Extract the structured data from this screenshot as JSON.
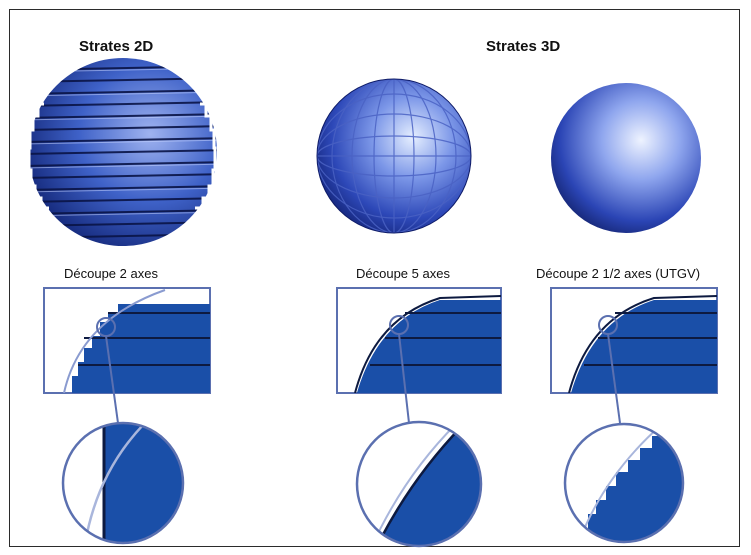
{
  "titles": {
    "strata_2d": "Strates 2D",
    "strata_3d": "Strates 3D"
  },
  "captions": {
    "two_axis": "Découpe 2 axes",
    "five_axis": "Découpe 5 axes",
    "two_half_axis": "Découpe 2 1/2 axes (UTGV)"
  },
  "colors": {
    "part_blue": "#1a4fa8",
    "outline_blue": "#5b70b0",
    "sphere_dark": "#0b1850",
    "sphere_light": "#d6e2ff"
  }
}
